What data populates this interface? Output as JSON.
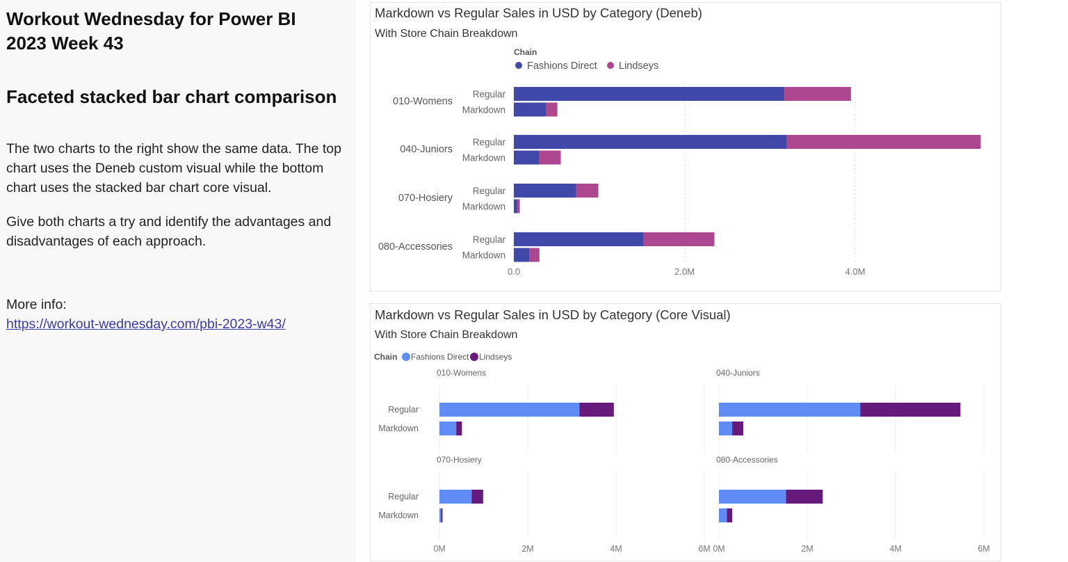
{
  "left": {
    "title": "Workout Wednesday for Power BI 2023 Week 43",
    "subtitle": "Faceted stacked bar chart comparison",
    "para1": "The two charts to the right show the same data. The top chart uses the Deneb custom visual while the bottom chart uses the stacked bar chart core visual.",
    "para2": "Give both charts a try and identify the advantages and disadvantages of each approach.",
    "more_info": "More info:",
    "link": "https://workout-wednesday.com/pbi-2023-w43/"
  },
  "chart_data": [
    {
      "type": "bar",
      "title": "Markdown vs Regular Sales in USD by Category (Deneb)",
      "subtitle": "With Store Chain Breakdown",
      "legend_title": "Chain",
      "legend_placement": "top",
      "orientation": "horizontal",
      "stacked": true,
      "categories": [
        "010-Womens",
        "040-Juniors",
        "070-Hosiery",
        "080-Accessories"
      ],
      "subcategories": [
        "Regular",
        "Markdown"
      ],
      "series": [
        {
          "name": "Fashions Direct",
          "color": "#4149a8",
          "values": [
            [
              3.17,
              0.38
            ],
            [
              3.2,
              0.3
            ],
            [
              0.73,
              0.04
            ],
            [
              1.52,
              0.18
            ]
          ]
        },
        {
          "name": "Lindseys",
          "color": "#ad478f",
          "values": [
            [
              0.78,
              0.13
            ],
            [
              2.27,
              0.25
            ],
            [
              0.26,
              0.03
            ],
            [
              0.83,
              0.12
            ]
          ]
        }
      ],
      "unit": "M USD",
      "xlim": [
        0,
        5.5
      ],
      "xticks": [
        0,
        2,
        4
      ],
      "xtick_labels": [
        "0.0",
        "2.0M",
        "4.0M"
      ],
      "grid": true
    },
    {
      "type": "bar",
      "title": "Markdown vs Regular Sales in USD by Category (Core Visual)",
      "subtitle": "With Store Chain Breakdown",
      "legend_title": "Chain",
      "legend_placement": "top-left",
      "orientation": "horizontal",
      "stacked": true,
      "faceted": true,
      "categories": [
        "010-Womens",
        "040-Juniors",
        "070-Hosiery",
        "080-Accessories"
      ],
      "subcategories": [
        "Regular",
        "Markdown"
      ],
      "series": [
        {
          "name": "Fashions Direct",
          "color": "#5f8cf5",
          "values": [
            [
              3.17,
              0.38
            ],
            [
              3.2,
              0.3
            ],
            [
              0.73,
              0.04
            ],
            [
              1.52,
              0.18
            ]
          ]
        },
        {
          "name": "Lindseys",
          "color": "#661a7c",
          "values": [
            [
              0.78,
              0.13
            ],
            [
              2.27,
              0.25
            ],
            [
              0.26,
              0.03
            ],
            [
              0.83,
              0.12
            ]
          ]
        }
      ],
      "unit": "M USD",
      "xlim": [
        0,
        6
      ],
      "xticks": [
        0,
        2,
        4,
        6
      ],
      "xtick_labels": [
        "0M",
        "2M",
        "4M",
        "6M"
      ],
      "grid": true
    }
  ]
}
